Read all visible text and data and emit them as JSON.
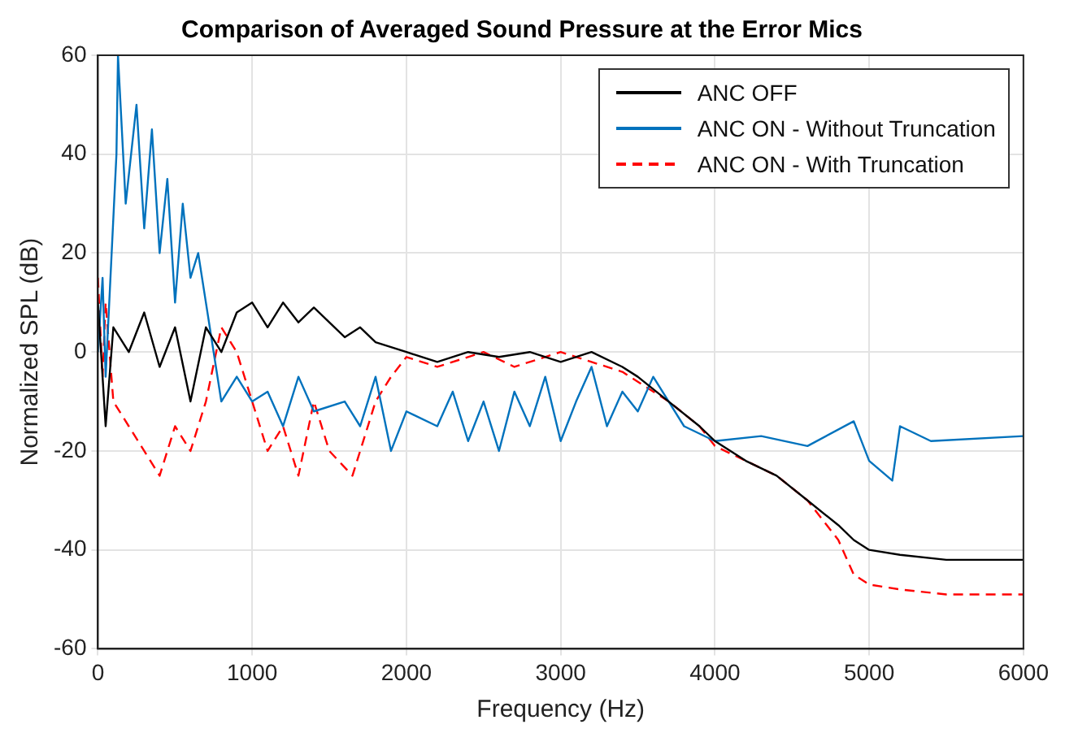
{
  "chart_data": {
    "type": "line",
    "title": "Comparison of Averaged Sound Pressure at the Error Mics",
    "xlabel": "Frequency (Hz)",
    "ylabel": "Normalized SPL (dB)",
    "xlim": [
      0,
      6000
    ],
    "xticks": [
      0,
      1000,
      2000,
      3000,
      4000,
      5000,
      6000
    ],
    "ylim": [
      -60,
      60
    ],
    "yticks": [
      -60,
      -40,
      -20,
      0,
      20,
      40,
      60
    ],
    "grid": true,
    "legend": "top right",
    "marker": "none",
    "series": [
      {
        "name": "ANC OFF",
        "color": "#000000",
        "line_style": "solid",
        "x": [
          0,
          30,
          50,
          100,
          200,
          300,
          400,
          500,
          600,
          700,
          800,
          900,
          1000,
          1100,
          1200,
          1300,
          1400,
          1600,
          1700,
          1800,
          2000,
          2200,
          2400,
          2600,
          2800,
          3000,
          3200,
          3400,
          3500,
          3700,
          3900,
          4000,
          4200,
          4400,
          4600,
          4800,
          4900,
          5000,
          5200,
          5500,
          6000
        ],
        "values": [
          10,
          -5,
          -15,
          5,
          0,
          8,
          -3,
          5,
          -10,
          5,
          0,
          8,
          10,
          5,
          10,
          6,
          9,
          3,
          5,
          2,
          0,
          -2,
          0,
          -1,
          0,
          -2,
          0,
          -3,
          -5,
          -10,
          -15,
          -18,
          -22,
          -25,
          -30,
          -35,
          -38,
          -40,
          -41,
          -42,
          -42
        ]
      },
      {
        "name": "ANC ON - Without Truncation",
        "color": "#0072bd",
        "line_style": "solid",
        "x": [
          0,
          30,
          50,
          120,
          130,
          180,
          250,
          300,
          350,
          400,
          450,
          500,
          550,
          600,
          650,
          700,
          750,
          800,
          900,
          1000,
          1100,
          1200,
          1300,
          1400,
          1600,
          1700,
          1800,
          1900,
          2000,
          2200,
          2300,
          2400,
          2500,
          2600,
          2700,
          2800,
          2900,
          3000,
          3100,
          3200,
          3300,
          3400,
          3500,
          3600,
          3800,
          4000,
          4300,
          4600,
          4900,
          5000,
          5150,
          5200,
          5400,
          6000
        ],
        "values": [
          0,
          15,
          -5,
          40,
          60,
          30,
          50,
          25,
          45,
          20,
          35,
          10,
          30,
          15,
          20,
          10,
          0,
          -10,
          -5,
          -10,
          -8,
          -15,
          -5,
          -12,
          -10,
          -15,
          -5,
          -20,
          -12,
          -15,
          -8,
          -18,
          -10,
          -20,
          -8,
          -15,
          -5,
          -18,
          -10,
          -3,
          -15,
          -8,
          -12,
          -5,
          -15,
          -18,
          -17,
          -19,
          -14,
          -22,
          -26,
          -15,
          -18,
          -17
        ]
      },
      {
        "name": "ANC ON - With Truncation",
        "color": "#ff0000",
        "line_style": "dashed",
        "x": [
          0,
          30,
          50,
          100,
          200,
          300,
          400,
          500,
          600,
          700,
          800,
          900,
          950,
          1000,
          1100,
          1200,
          1300,
          1400,
          1500,
          1650,
          1800,
          1900,
          2000,
          2200,
          2500,
          2700,
          3000,
          3200,
          3400,
          3500,
          3700,
          3900,
          4000,
          4200,
          4400,
          4600,
          4800,
          4900,
          5000,
          5200,
          5500,
          6000
        ],
        "values": [
          15,
          -5,
          10,
          -10,
          -15,
          -20,
          -25,
          -15,
          -20,
          -10,
          5,
          0,
          -5,
          -10,
          -20,
          -15,
          -25,
          -10,
          -20,
          -25,
          -10,
          -5,
          -1,
          -3,
          0,
          -3,
          0,
          -2,
          -4,
          -6,
          -10,
          -15,
          -19,
          -22,
          -25,
          -30,
          -38,
          -45,
          -47,
          -48,
          -49,
          -49
        ]
      }
    ]
  }
}
